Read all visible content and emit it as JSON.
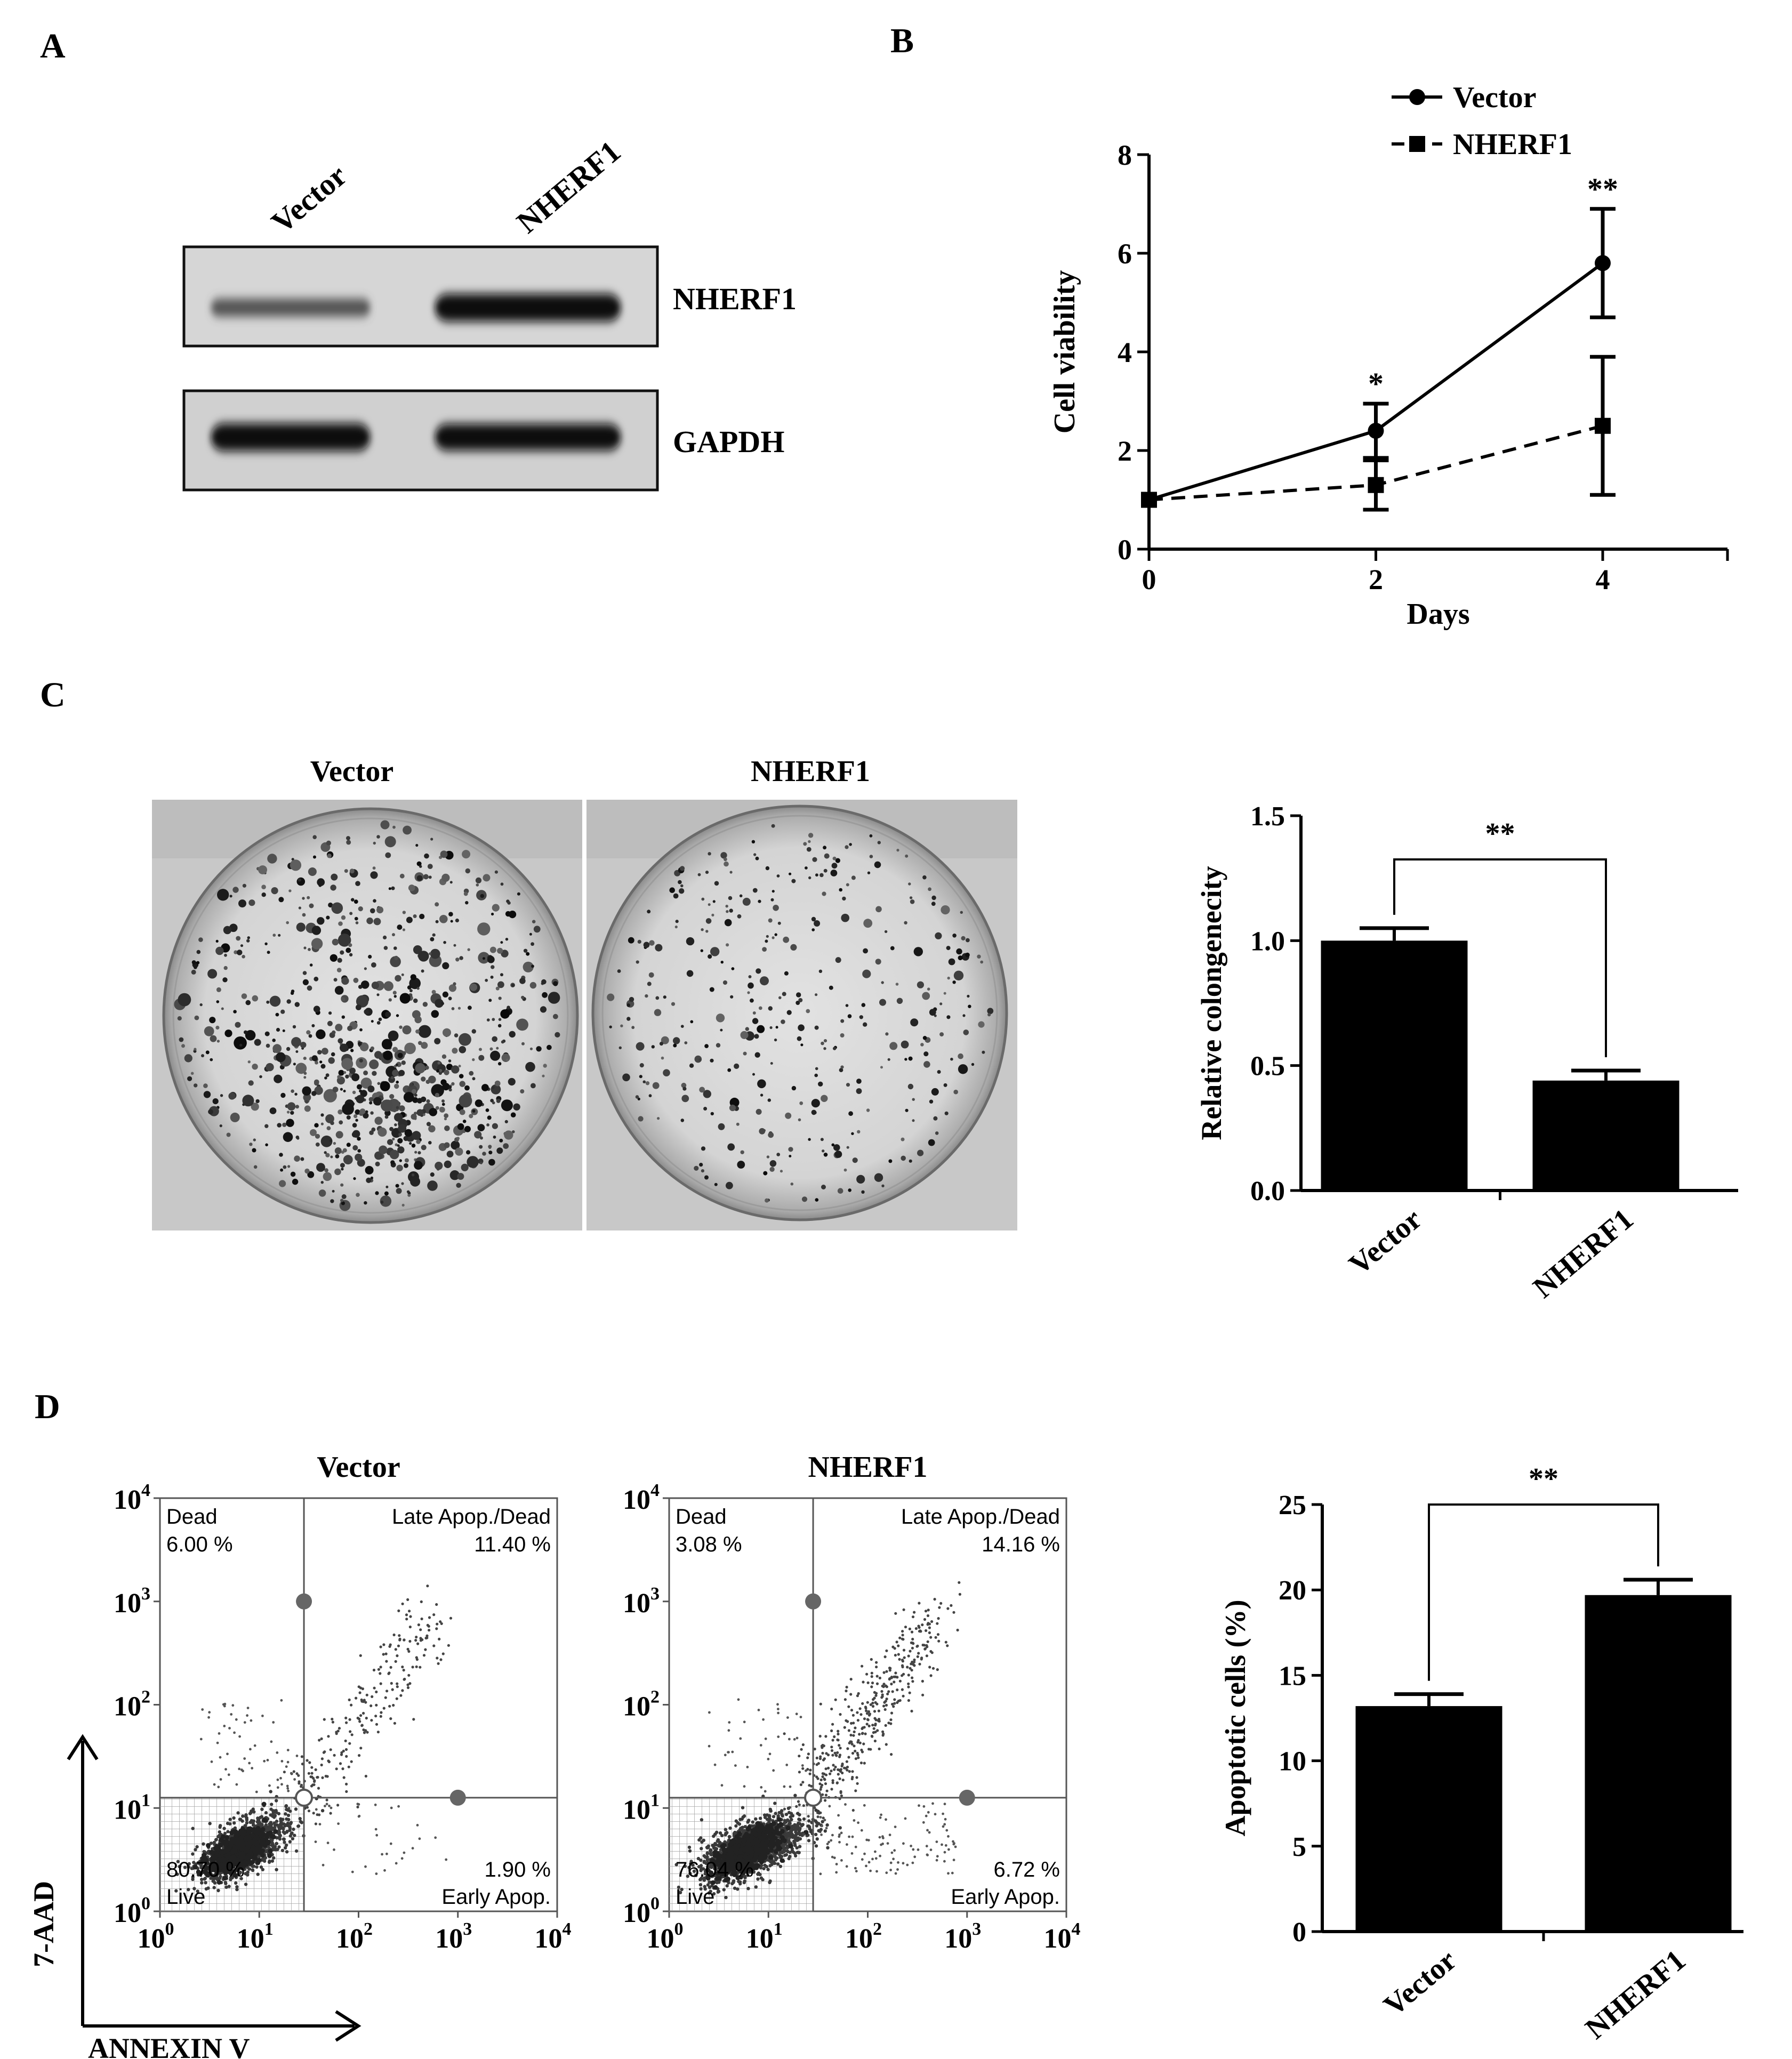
{
  "panels": {
    "A": {
      "letter": "A",
      "lanes": [
        "Vector",
        "NHERF1"
      ],
      "blots": [
        {
          "label": "NHERF1",
          "intensity": [
            0.45,
            1.0
          ]
        },
        {
          "label": "GAPDH",
          "intensity": [
            1.0,
            0.95
          ]
        }
      ]
    },
    "B": {
      "letter": "B"
    },
    "C": {
      "letter": "C",
      "dish_labels": [
        "Vector",
        "NHERF1"
      ]
    },
    "D": {
      "letter": "D",
      "axis_y_label": "7-AAD",
      "axis_x_label": "ANNEXIN V",
      "flow": [
        {
          "title": "Vector",
          "quadrants": {
            "ul_name": "Dead",
            "ul_value": "6.00 %",
            "ur_name": "Late Apop./Dead",
            "ur_value": "11.40 %",
            "ll_value": "80.70 %",
            "ll_name": "Live",
            "lr_value": "1.90 %",
            "lr_name": "Early Apop."
          }
        },
        {
          "title": "NHERF1",
          "quadrants": {
            "ul_name": "Dead",
            "ul_value": "3.08 %",
            "ur_name": "Late Apop./Dead",
            "ur_value": "14.16 %",
            "ll_value": "76.04 %",
            "ll_name": "Live",
            "lr_value": "6.72 %",
            "lr_name": "Early Apop."
          }
        }
      ],
      "flow_tick_labels": [
        "10",
        "10",
        "10",
        "10",
        "10"
      ],
      "flow_tick_exponents": [
        "0",
        "1",
        "2",
        "3",
        "4"
      ]
    }
  },
  "chart_data": [
    {
      "id": "B",
      "type": "line",
      "x": [
        0,
        2,
        4
      ],
      "xlabel": "Days",
      "ylabel": "Cell viability",
      "xlim": [
        0,
        5.1
      ],
      "ylim": [
        0,
        8
      ],
      "xticks": [
        "0",
        "2",
        "4"
      ],
      "yticks": [
        "0",
        "2",
        "4",
        "6",
        "8"
      ],
      "legend_position": "top",
      "series": [
        {
          "name": "Vector",
          "values": [
            1.0,
            2.4,
            5.8
          ],
          "errors": [
            0,
            0.55,
            1.1
          ],
          "marker": "circle",
          "line": "solid"
        },
        {
          "name": "NHERF1",
          "values": [
            1.0,
            1.3,
            2.5
          ],
          "errors": [
            0,
            0.5,
            1.4
          ],
          "marker": "square",
          "line": "dashed"
        }
      ],
      "annotations": [
        {
          "x": 2,
          "text": "*"
        },
        {
          "x": 4,
          "text": "**"
        }
      ]
    },
    {
      "id": "C",
      "type": "bar",
      "categories": [
        "Vector",
        "NHERF1"
      ],
      "values": [
        1.0,
        0.44
      ],
      "errors": [
        0.05,
        0.04
      ],
      "ylabel": "Relative colongenecity",
      "ylim": [
        0,
        1.5
      ],
      "yticks": [
        "0.0",
        "0.5",
        "1.0",
        "1.5"
      ],
      "significance": "**"
    },
    {
      "id": "D",
      "type": "bar",
      "categories": [
        "Vector",
        "NHERF1"
      ],
      "values": [
        13.2,
        19.7
      ],
      "errors": [
        0.7,
        0.9
      ],
      "ylabel": "Apoptotic cells (%)",
      "ylim": [
        0,
        25
      ],
      "yticks": [
        "0",
        "5",
        "10",
        "15",
        "20",
        "25"
      ],
      "significance": "**"
    }
  ]
}
